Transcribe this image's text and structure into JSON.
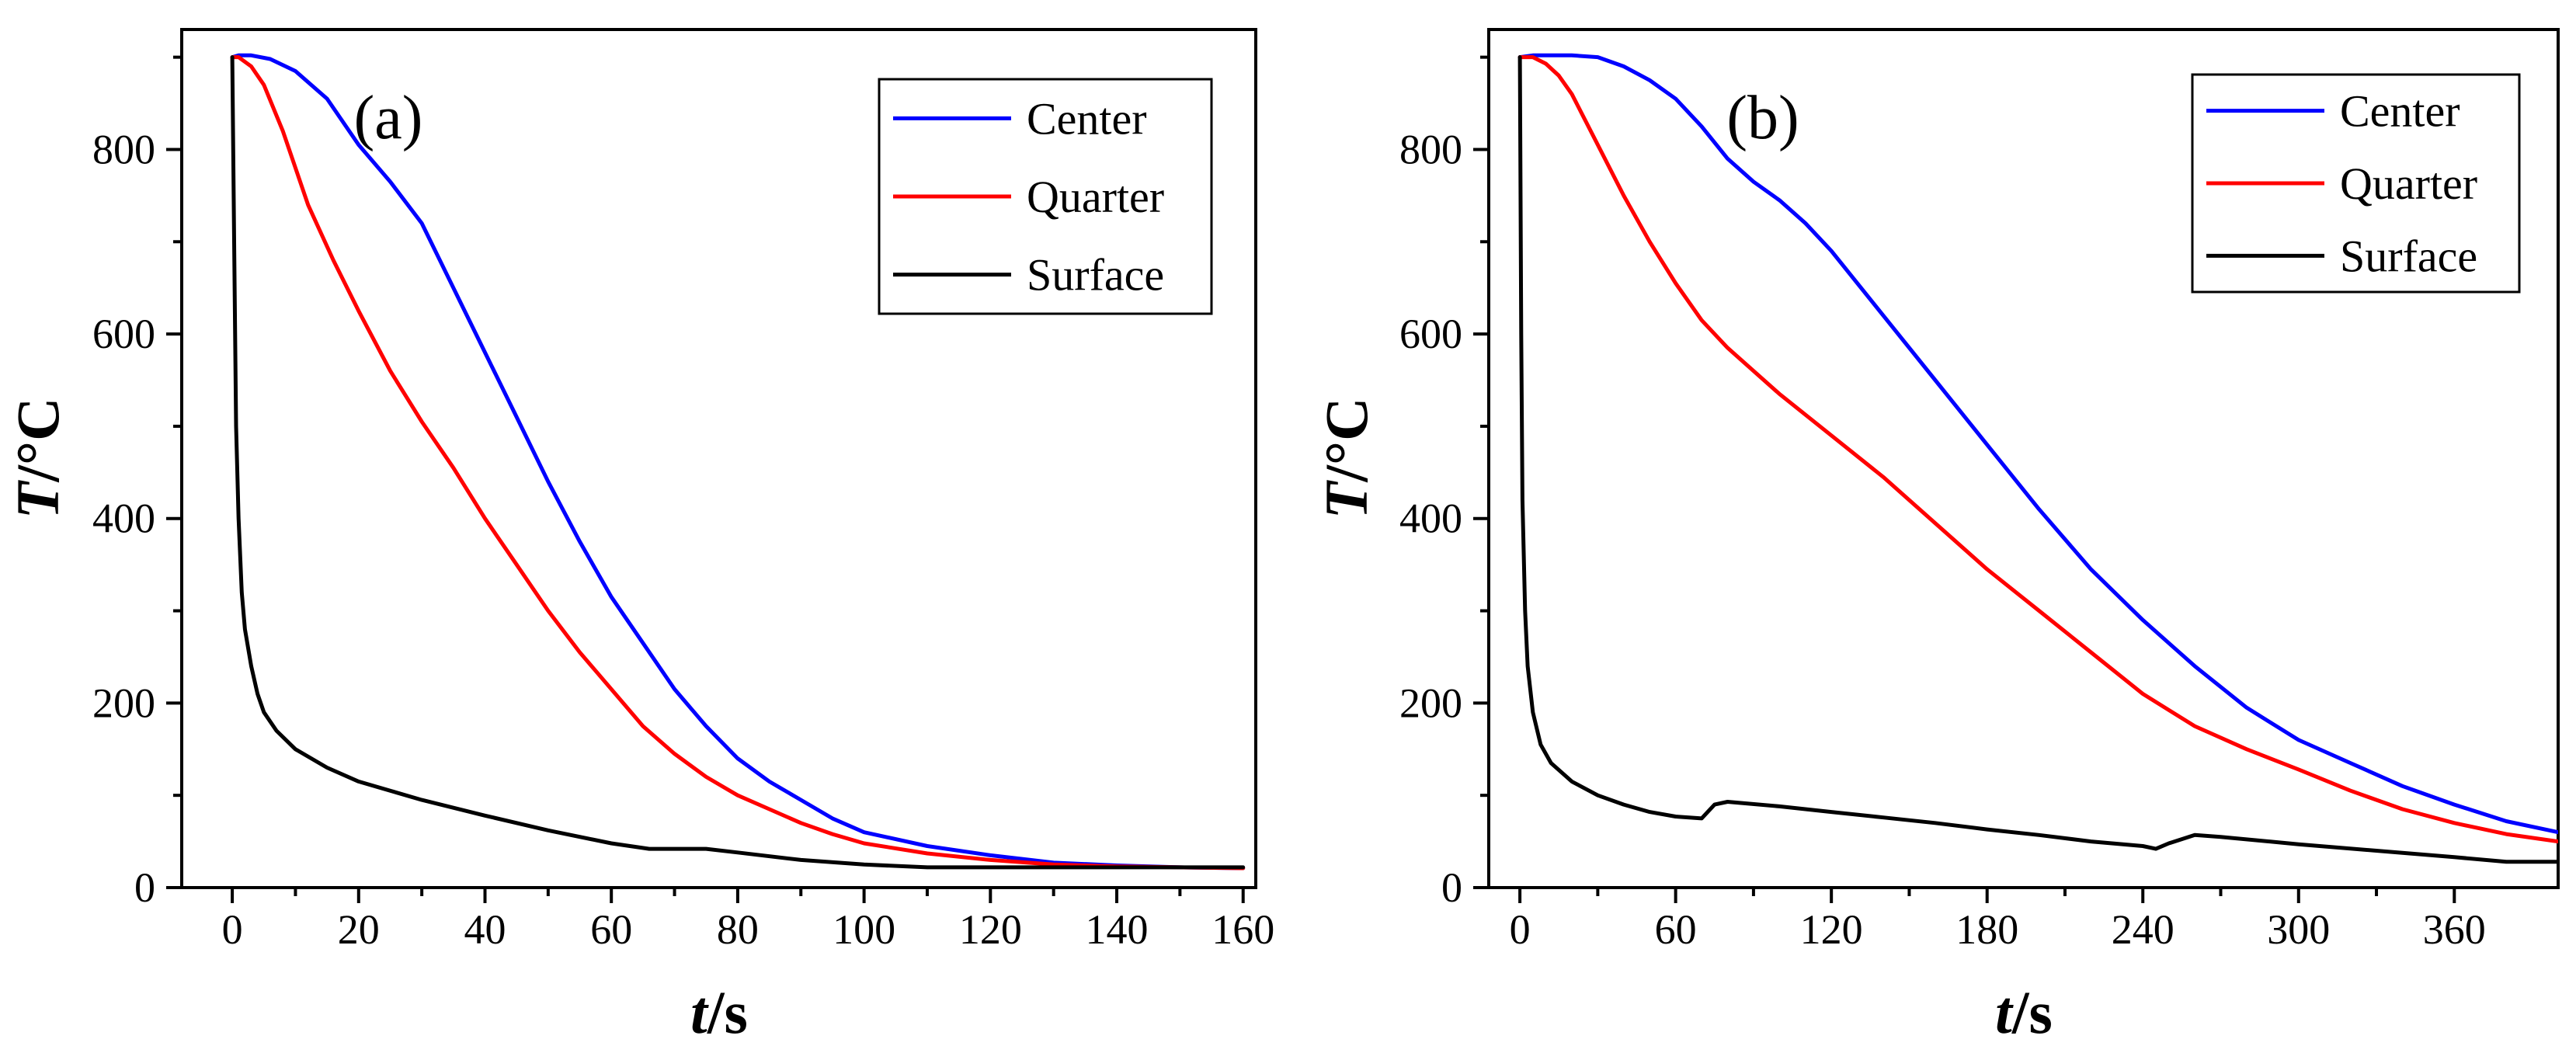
{
  "chart_data": [
    {
      "type": "line",
      "panel_label": "(a)",
      "xlabel": {
        "italic": "t",
        "rest": "/s"
      },
      "ylabel": {
        "italic": "T",
        "rest": "/°C"
      },
      "xlim": [
        -8,
        162
      ],
      "ylim": [
        0,
        930
      ],
      "xticks": [
        0,
        20,
        40,
        60,
        80,
        100,
        120,
        140,
        160
      ],
      "xtick_labels": [
        "0",
        "20",
        "40",
        "60",
        "80",
        "100",
        "120",
        "140",
        "160"
      ],
      "yticks": [
        0,
        200,
        400,
        600,
        800
      ],
      "ytick_labels": [
        "0",
        "200",
        "400",
        "600",
        "800"
      ],
      "legend_position": "top-right",
      "series": [
        {
          "name": "Center",
          "color": "#0000ff",
          "x": [
            0,
            1,
            3,
            6,
            10,
            15,
            20,
            25,
            30,
            35,
            40,
            45,
            50,
            55,
            60,
            65,
            70,
            75,
            80,
            85,
            90,
            95,
            100,
            110,
            120,
            130,
            140,
            150,
            160
          ],
          "y": [
            900,
            902,
            902,
            898,
            885,
            855,
            805,
            765,
            720,
            650,
            580,
            510,
            440,
            375,
            315,
            265,
            215,
            175,
            140,
            115,
            95,
            75,
            60,
            45,
            35,
            27,
            24,
            22,
            21
          ]
        },
        {
          "name": "Quarter",
          "color": "#ff0000",
          "x": [
            0,
            1,
            3,
            5,
            8,
            12,
            16,
            20,
            25,
            30,
            35,
            40,
            45,
            50,
            55,
            60,
            65,
            70,
            75,
            80,
            85,
            90,
            95,
            100,
            110,
            120,
            130,
            140,
            150,
            160
          ],
          "y": [
            900,
            900,
            890,
            870,
            820,
            740,
            680,
            625,
            560,
            505,
            455,
            400,
            350,
            300,
            255,
            215,
            175,
            145,
            120,
            100,
            85,
            70,
            58,
            48,
            37,
            30,
            25,
            23,
            22,
            21
          ]
        },
        {
          "name": "Surface",
          "color": "#000000",
          "x": [
            0,
            0.3,
            0.6,
            1,
            1.5,
            2,
            3,
            4,
            5,
            7,
            10,
            15,
            20,
            30,
            40,
            50,
            60,
            66,
            75,
            80,
            90,
            100,
            110,
            120,
            130,
            140,
            150,
            160
          ],
          "y": [
            900,
            700,
            500,
            400,
            320,
            280,
            240,
            210,
            190,
            170,
            150,
            130,
            115,
            95,
            78,
            62,
            48,
            42,
            42,
            38,
            30,
            25,
            22,
            22,
            22,
            22,
            22,
            22
          ]
        }
      ]
    },
    {
      "type": "line",
      "panel_label": "(b)",
      "xlabel": {
        "italic": "t",
        "rest": "/s"
      },
      "ylabel": {
        "italic": "T",
        "rest": "/°C"
      },
      "xlim": [
        -12,
        400
      ],
      "ylim": [
        0,
        930
      ],
      "xticks": [
        0,
        60,
        120,
        180,
        240,
        300,
        360
      ],
      "xtick_labels": [
        "0",
        "60",
        "120",
        "180",
        "240",
        "300",
        "360"
      ],
      "yticks": [
        0,
        200,
        400,
        600,
        800
      ],
      "ytick_labels": [
        "0",
        "200",
        "400",
        "600",
        "800"
      ],
      "legend_position": "top-right",
      "series": [
        {
          "name": "Center",
          "color": "#0000ff",
          "x": [
            0,
            5,
            10,
            20,
            30,
            40,
            50,
            60,
            70,
            80,
            90,
            100,
            110,
            120,
            140,
            160,
            180,
            200,
            220,
            240,
            260,
            280,
            300,
            320,
            340,
            360,
            380,
            400
          ],
          "y": [
            900,
            902,
            902,
            902,
            900,
            890,
            875,
            855,
            825,
            790,
            765,
            745,
            720,
            690,
            620,
            550,
            480,
            410,
            345,
            290,
            240,
            195,
            160,
            135,
            110,
            90,
            72,
            60
          ]
        },
        {
          "name": "Quarter",
          "color": "#ff0000",
          "x": [
            0,
            5,
            10,
            15,
            20,
            30,
            40,
            50,
            60,
            70,
            80,
            90,
            100,
            120,
            140,
            160,
            180,
            200,
            220,
            240,
            260,
            280,
            300,
            320,
            340,
            360,
            380,
            400
          ],
          "y": [
            900,
            900,
            893,
            880,
            860,
            805,
            750,
            700,
            655,
            615,
            585,
            560,
            535,
            490,
            445,
            395,
            345,
            300,
            255,
            210,
            175,
            150,
            128,
            105,
            85,
            70,
            58,
            50
          ]
        },
        {
          "name": "Surface",
          "color": "#000000",
          "x": [
            0,
            0.5,
            1,
            2,
            3,
            5,
            8,
            12,
            20,
            30,
            40,
            50,
            60,
            70,
            75,
            80,
            100,
            120,
            140,
            160,
            180,
            200,
            220,
            240,
            245,
            250,
            260,
            270,
            300,
            330,
            360,
            380,
            400
          ],
          "y": [
            900,
            600,
            420,
            300,
            240,
            190,
            155,
            135,
            115,
            100,
            90,
            82,
            77,
            75,
            90,
            93,
            88,
            82,
            76,
            70,
            63,
            57,
            50,
            45,
            42,
            48,
            57,
            55,
            47,
            40,
            33,
            28,
            28
          ]
        }
      ]
    }
  ]
}
